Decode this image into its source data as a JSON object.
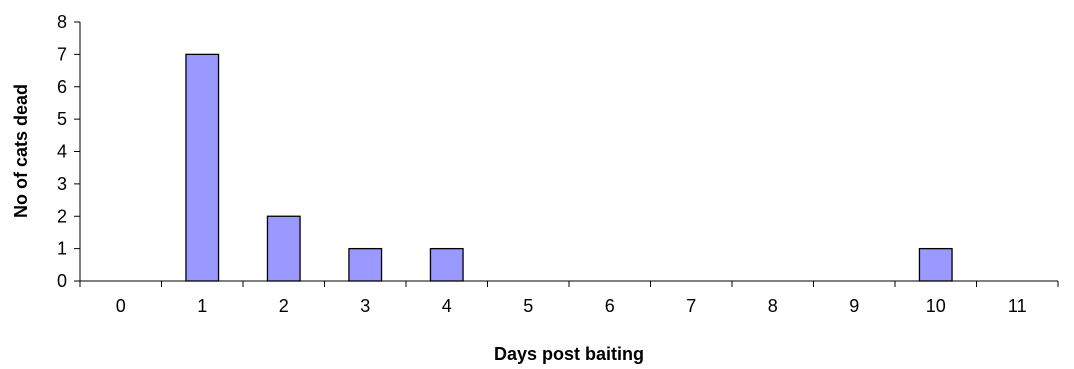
{
  "chart_data": {
    "type": "bar",
    "title": "",
    "xlabel": "Days post baiting",
    "ylabel": "No of cats dead",
    "categories": [
      "0",
      "1",
      "2",
      "3",
      "4",
      "5",
      "6",
      "7",
      "8",
      "9",
      "10",
      "11"
    ],
    "values": [
      0,
      7,
      2,
      1,
      1,
      0,
      0,
      0,
      0,
      0,
      1,
      0
    ],
    "ylim": [
      0,
      8
    ],
    "yticks": [
      "0",
      "1",
      "2",
      "3",
      "4",
      "5",
      "6",
      "7",
      "8"
    ],
    "grid": false,
    "legend": "none",
    "bar_color": "#9999ff"
  }
}
